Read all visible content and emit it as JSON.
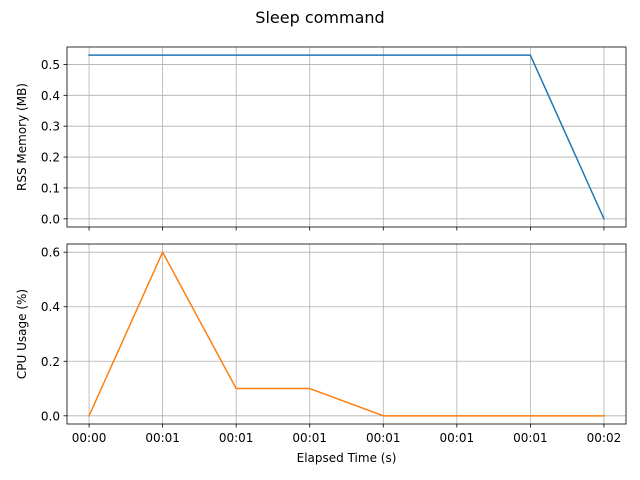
{
  "figure": {
    "title": "Sleep command"
  },
  "chart_data": [
    {
      "type": "line",
      "title": "",
      "xlabel": "",
      "ylabel": "RSS Memory (MB)",
      "x_ticklabels": [
        "00:00",
        "00:01",
        "00:01",
        "00:01",
        "00:01",
        "00:01",
        "00:01",
        "00:02"
      ],
      "xlim": [
        -0.3,
        7.3
      ],
      "ylim": [
        -0.0265,
        0.5565
      ],
      "yticks": [
        0.0,
        0.1,
        0.2,
        0.3,
        0.4,
        0.5
      ],
      "ytick_labels": [
        "0.0",
        "0.1",
        "0.2",
        "0.3",
        "0.4",
        "0.5"
      ],
      "grid": true,
      "show_x_ticklabels": false,
      "series": [
        {
          "color": "#1f77b4",
          "values": [
            0.53,
            0.53,
            0.53,
            0.53,
            0.53,
            0.53,
            0.53,
            0.0
          ]
        }
      ]
    },
    {
      "type": "line",
      "title": "",
      "xlabel": "Elapsed Time (s)",
      "ylabel": "CPU Usage (%)",
      "x_ticklabels": [
        "00:00",
        "00:01",
        "00:01",
        "00:01",
        "00:01",
        "00:01",
        "00:01",
        "00:02"
      ],
      "xlim": [
        -0.3,
        7.3
      ],
      "ylim": [
        -0.03,
        0.63
      ],
      "yticks": [
        0.0,
        0.2,
        0.4,
        0.6
      ],
      "ytick_labels": [
        "0.0",
        "0.2",
        "0.4",
        "0.6"
      ],
      "grid": true,
      "show_x_ticklabels": true,
      "series": [
        {
          "color": "#ff7f0e",
          "values": [
            0.0,
            0.6,
            0.1,
            0.1,
            0.0,
            0.0,
            0.0,
            0.0
          ]
        }
      ]
    }
  ]
}
